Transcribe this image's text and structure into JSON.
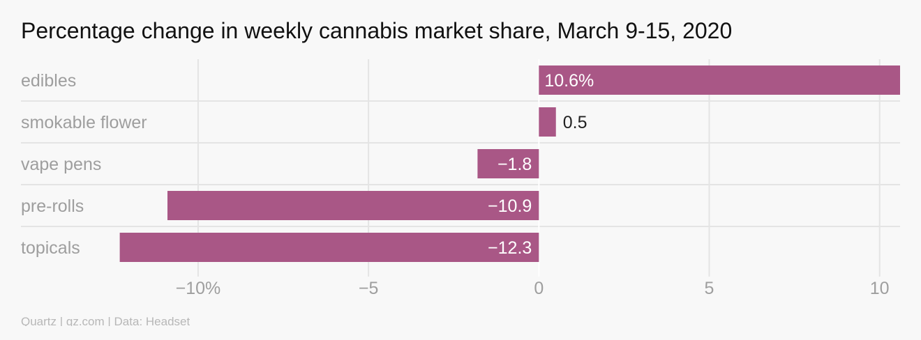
{
  "title": "Percentage change in weekly cannabis market share, March 9-15, 2020",
  "source": "Quartz | qz.com | Data: Headset",
  "colors": {
    "bar": "#a95786",
    "grid": "#e4e4e4",
    "zero_line": "#ffffff",
    "label_inside": "#ffffff",
    "label_outside": "#222222"
  },
  "chart_data": {
    "type": "bar",
    "orientation": "horizontal",
    "title": "Percentage change in weekly cannabis market share, March 9-15, 2020",
    "categories": [
      "edibles",
      "smokable flower",
      "vape pens",
      "pre-rolls",
      "topicals"
    ],
    "values": [
      10.6,
      0.5,
      -1.8,
      -10.9,
      -12.3
    ],
    "value_labels": [
      "10.6%",
      "0.5",
      "−1.8",
      "−10.9",
      "−12.3"
    ],
    "xlim": [
      -15.2,
      10.6
    ],
    "xticks": [
      -10,
      -5,
      0,
      5,
      10
    ],
    "xtick_labels": [
      "−10%",
      "−5",
      "0",
      "5",
      "10"
    ],
    "xlabel": "",
    "ylabel": "",
    "grid": true
  }
}
